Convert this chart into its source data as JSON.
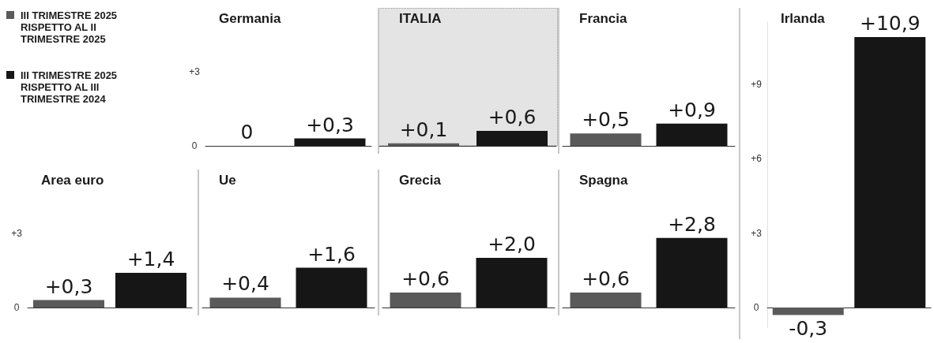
{
  "chart_data": [
    {
      "type": "other",
      "annotations": [
        "III TRIMESTRE 2025 RISPETTO AL II TRIMESTRE 2025",
        "III TRIMESTRE 2025 RISPETTO AL III TRIMESTRE 2024"
      ]
    },
    {
      "type": "bar",
      "title": "Germania",
      "categories": [
        null,
        null
      ],
      "tick_labels": "y",
      "ylim": [
        0,
        3
      ],
      "yticks": [
        {
          "value": 0,
          "label": "0"
        },
        {
          "value": 3,
          "label": "+3"
        }
      ],
      "values": [
        0,
        0.3
      ],
      "colors": [
        "#5a5a5a",
        "#161616"
      ],
      "value_labels": [
        "0",
        "+0,3"
      ]
    },
    {
      "type": "bar",
      "title": "ITALIA",
      "categories": [
        null,
        null
      ],
      "tick_labels": false,
      "values": [
        0.1,
        0.6
      ],
      "colors": [
        "#5a5a5a",
        "#161616"
      ],
      "value_labels": [
        "+0,1",
        "+0,6"
      ]
    },
    {
      "type": "bar",
      "title": "Francia",
      "categories": [
        null,
        null
      ],
      "tick_labels": false,
      "values": [
        0.5,
        0.9
      ],
      "colors": [
        "#5a5a5a",
        "#161616"
      ],
      "value_labels": [
        "+0,5",
        "+0,9"
      ]
    },
    {
      "type": "bar",
      "title": "Area euro",
      "categories": [
        null,
        null
      ],
      "tick_labels": "y",
      "ylim": [
        0,
        3
      ],
      "yticks": [
        {
          "value": 0,
          "label": "0"
        },
        {
          "value": 3,
          "label": "+3"
        }
      ],
      "values": [
        0.3,
        1.4
      ],
      "colors": [
        "#5a5a5a",
        "#161616"
      ],
      "value_labels": [
        "+0,3",
        "+1,4"
      ]
    },
    {
      "type": "bar",
      "title": "Ue",
      "categories": [
        null,
        null
      ],
      "tick_labels": false,
      "ylim": [
        0,
        3
      ],
      "values": [
        0.4,
        1.6
      ],
      "colors": [
        "#5a5a5a",
        "#161616"
      ],
      "value_labels": [
        "+0,4",
        "+1,6"
      ]
    },
    {
      "type": "bar",
      "title": "Grecia",
      "categories": [
        null,
        null
      ],
      "tick_labels": false,
      "values": [
        0.6,
        2.0
      ],
      "colors": [
        "#5a5a5a",
        "#161616"
      ],
      "value_labels": [
        "+0,6",
        "+2,0"
      ]
    },
    {
      "type": "bar",
      "title": "Spagna",
      "categories": [
        null,
        null
      ],
      "tick_labels": false,
      "ylim": [
        0,
        3
      ],
      "values": [
        0.6,
        2.8
      ],
      "colors": [
        "#5a5a5a",
        "#161616"
      ],
      "value_labels": [
        "+0,6",
        "+2,8"
      ]
    },
    {
      "type": "bar",
      "title": "Irlanda",
      "categories": [
        null,
        null
      ],
      "tick_labels": "y",
      "ylim": [
        -0.8,
        11.5
      ],
      "yticks": [
        {
          "value": 0,
          "label": "0"
        },
        {
          "value": 3,
          "label": "+3"
        },
        {
          "value": 6,
          "label": "+6"
        },
        {
          "value": 9,
          "label": "+9"
        }
      ],
      "values": [
        -0.3,
        10.9
      ],
      "colors": [
        "#5a5a5a",
        "#161616"
      ],
      "value_labels": [
        "-0,3",
        "+10,9"
      ]
    }
  ]
}
